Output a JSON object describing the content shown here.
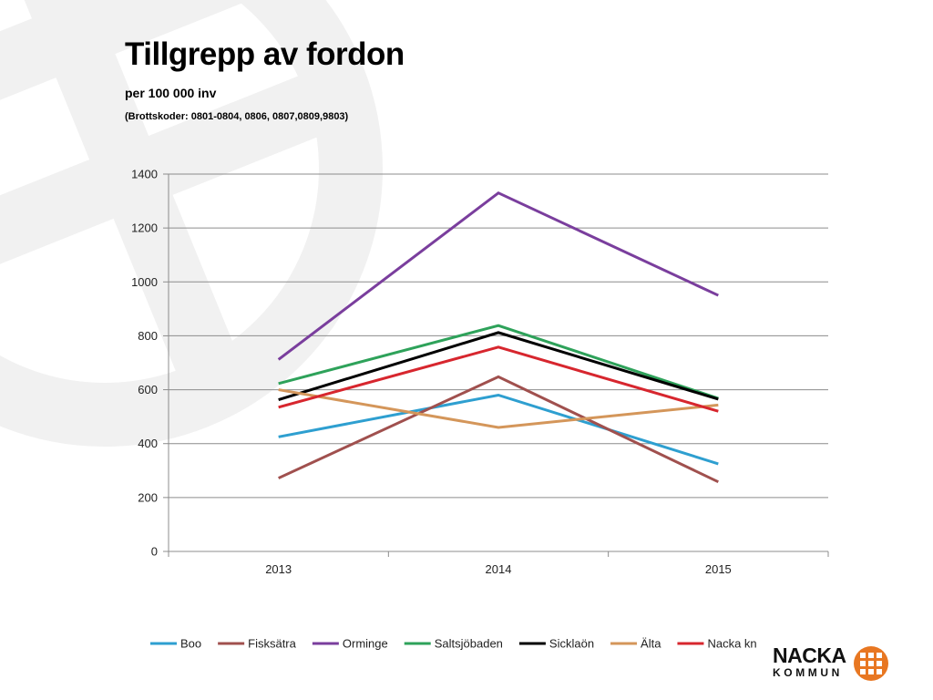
{
  "slide": {
    "title": "Tillgrepp av fordon",
    "subtitle": "per 100 000 inv",
    "codes": "(Brottskoder: 0801-0804, 0806, 0807,0809,9803)"
  },
  "logo": {
    "line1": "NACKA",
    "line2": "KOMMUN",
    "mark_icon": "nacka-crest-icon",
    "color": "#E87722"
  },
  "chart_data": {
    "type": "line",
    "categories": [
      "2013",
      "2014",
      "2015"
    ],
    "ylim": [
      0,
      1400
    ],
    "yticks": [
      0,
      200,
      400,
      600,
      800,
      1000,
      1200,
      1400
    ],
    "ytick_labels": [
      "0",
      "200",
      "400",
      "600",
      "800",
      "1000",
      "1200",
      "1400"
    ],
    "grid": true,
    "legend": "bottom",
    "series": [
      {
        "name": "Boo",
        "color": "#2E9FD0",
        "values": [
          425,
          580,
          325
        ]
      },
      {
        "name": "Fisksätra",
        "color": "#A0504E",
        "values": [
          272,
          648,
          258
        ]
      },
      {
        "name": "Orminge",
        "color": "#7A3E9D",
        "values": [
          712,
          1330,
          950
        ]
      },
      {
        "name": "Saltsjöbaden",
        "color": "#2EA25A",
        "values": [
          623,
          838,
          568
        ]
      },
      {
        "name": "Sicklaön",
        "color": "#000000",
        "values": [
          563,
          812,
          565
        ]
      },
      {
        "name": "Älta",
        "color": "#D4965A",
        "values": [
          600,
          460,
          543
        ]
      },
      {
        "name": "Nacka kn",
        "color": "#D7262E",
        "values": [
          535,
          758,
          520
        ]
      }
    ]
  }
}
